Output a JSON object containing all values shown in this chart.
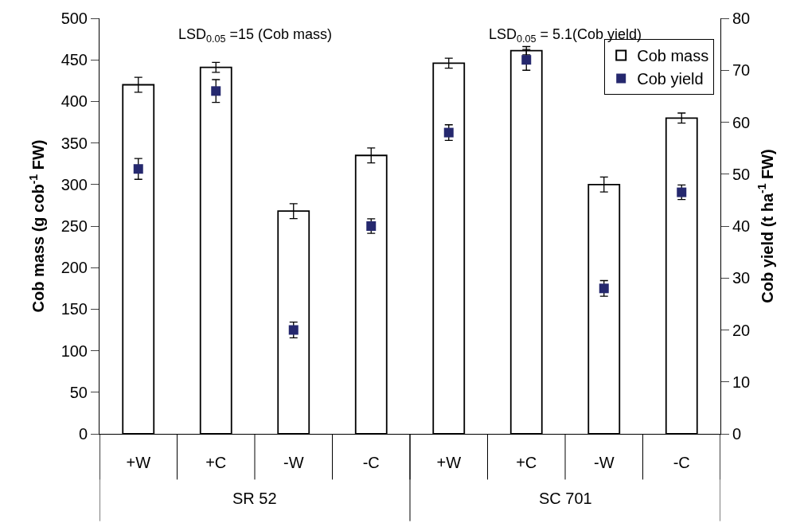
{
  "chart_data": {
    "type": "bar",
    "categories": [
      "+W",
      "+C",
      "-W",
      "-C",
      "+W",
      "+C",
      "-W",
      "-C"
    ],
    "ylabel": "Cob mass (g cob$^{-1}$ FW)",
    "y2label": "Cob yield (t ha$^{-1}$ FW)",
    "series": [
      {
        "name": "Cob mass",
        "color": "#ffffff",
        "values": [
          420,
          441,
          268,
          335,
          446,
          461,
          300,
          380
        ],
        "errors": [
          9,
          6,
          9,
          9,
          6,
          5,
          9,
          6
        ]
      },
      {
        "name": "Cob yield",
        "type": "scatter",
        "axis": "y2",
        "marker": "square",
        "color": "#25286e",
        "values": [
          51,
          66,
          20,
          40,
          58,
          72,
          28,
          46.5
        ],
        "errors": [
          2,
          2.2,
          1.5,
          1.4,
          1.5,
          2,
          1.5,
          1.4
        ]
      }
    ],
    "ylim": [
      0,
      500
    ],
    "yticks": [
      0,
      50,
      100,
      150,
      200,
      250,
      300,
      350,
      400,
      450,
      500
    ],
    "y2lim": [
      0,
      80
    ],
    "y2ticks": [
      0,
      10,
      20,
      30,
      40,
      50,
      60,
      70,
      80
    ],
    "annotations": [
      "LSD$_{0.05}$ =15 (Cob mass)",
      "LSD$_{0.05}$ = 5.1(Cob yield)",
      "SR 52",
      "SC 701"
    ],
    "legend": "top right"
  }
}
